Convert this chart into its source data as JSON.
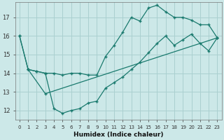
{
  "xlabel": "Humidex (Indice chaleur)",
  "bg_color": "#cce8e8",
  "grid_color": "#aad0d0",
  "line_color": "#1a7a6e",
  "xlim": [
    -0.5,
    23.5
  ],
  "ylim": [
    11.5,
    17.8
  ],
  "yticks": [
    12,
    13,
    14,
    15,
    16,
    17
  ],
  "xticks": [
    0,
    1,
    2,
    3,
    4,
    5,
    6,
    7,
    8,
    9,
    10,
    11,
    12,
    13,
    14,
    15,
    16,
    17,
    18,
    19,
    20,
    21,
    22,
    23
  ],
  "line1_x": [
    0,
    1,
    2,
    3,
    4,
    5,
    6,
    7,
    8,
    9,
    10,
    11,
    12,
    13,
    14,
    15,
    16,
    17,
    18,
    19,
    20,
    21,
    22,
    23
  ],
  "line1_y": [
    16.0,
    14.2,
    14.1,
    14.0,
    14.0,
    13.9,
    14.0,
    14.0,
    13.9,
    13.9,
    14.9,
    15.5,
    16.2,
    17.0,
    16.8,
    17.5,
    17.65,
    17.3,
    17.0,
    17.0,
    16.85,
    16.6,
    16.6,
    15.9
  ],
  "line2_x": [
    0,
    1,
    2,
    3,
    4,
    5,
    6,
    7,
    8,
    9,
    10,
    11,
    12,
    13,
    14,
    15,
    16,
    17,
    18,
    19,
    20,
    21,
    22,
    23
  ],
  "line2_y": [
    16.0,
    14.2,
    14.1,
    14.0,
    12.1,
    11.85,
    12.0,
    12.1,
    12.4,
    12.5,
    13.2,
    13.5,
    13.8,
    14.2,
    14.6,
    15.1,
    15.6,
    16.0,
    15.5,
    15.8,
    16.1,
    15.6,
    15.2,
    15.9
  ],
  "line3_x": [
    1,
    3,
    23
  ],
  "line3_y": [
    14.2,
    12.9,
    15.9
  ]
}
